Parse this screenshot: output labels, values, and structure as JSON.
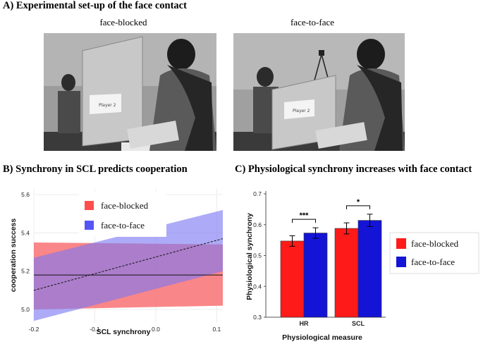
{
  "panel_a": {
    "title": "A) Experimental set-up of the face contact",
    "captions": [
      "face-blocked",
      "face-to-face"
    ],
    "sign_text": "Player 2"
  },
  "panel_b": {
    "title": "B) Synchrony in SCL predicts cooperation"
  },
  "panel_c": {
    "title": "C) Physiological synchrony increases with face contact"
  },
  "colors": {
    "red": "#ff1a1a",
    "blue": "#1414d6",
    "band_red": "#f8797b",
    "band_blue": "#7b78f2",
    "band_overlap": "#8a30a8"
  },
  "chart_data": [
    {
      "type": "line",
      "title": "",
      "xlabel": "SCL synchrony",
      "ylabel": "cooperation success",
      "xlim": [
        -0.2,
        0.11
      ],
      "ylim": [
        4.93,
        5.63
      ],
      "xticks": [
        -0.2,
        -0.1,
        0.0,
        0.1
      ],
      "xtick_labels": [
        "-0.2",
        "-0.1",
        "0.0",
        "0.1"
      ],
      "yticks": [
        5.0,
        5.2,
        5.4,
        5.6
      ],
      "ytick_labels": [
        "5.0",
        "5.2",
        "5.4",
        "5.6"
      ],
      "grid": true,
      "legend_position": "top-center",
      "series": [
        {
          "name": "face-blocked",
          "style": "solid",
          "x": [
            -0.2,
            0.11
          ],
          "y": [
            5.18,
            5.18
          ],
          "ci_lower": [
            5.0,
            5.02
          ],
          "ci_upper": [
            5.35,
            5.34
          ]
        },
        {
          "name": "face-to-face",
          "style": "dashed",
          "x": [
            -0.2,
            0.11
          ],
          "y": [
            5.1,
            5.37
          ],
          "ci_lower": [
            4.94,
            5.2
          ],
          "ci_upper": [
            5.27,
            5.52
          ]
        }
      ]
    },
    {
      "type": "bar",
      "title": "",
      "xlabel": "Physiological measure",
      "ylabel": "Physiological synchrony",
      "categories": [
        "HR",
        "SCL"
      ],
      "ylim": [
        0.3,
        0.7
      ],
      "yticks": [
        0.3,
        0.4,
        0.5,
        0.6,
        0.7
      ],
      "ytick_labels": [
        "0.3",
        "0.4",
        "0.5",
        "0.6",
        "0.7"
      ],
      "grid": false,
      "legend_position": "right",
      "series": [
        {
          "name": "face-blocked",
          "values": [
            0.547,
            0.588
          ],
          "errors": [
            0.017,
            0.018
          ]
        },
        {
          "name": "face-to-face",
          "values": [
            0.573,
            0.614
          ],
          "errors": [
            0.017,
            0.02
          ]
        }
      ],
      "significance": [
        "***",
        "*"
      ]
    }
  ]
}
